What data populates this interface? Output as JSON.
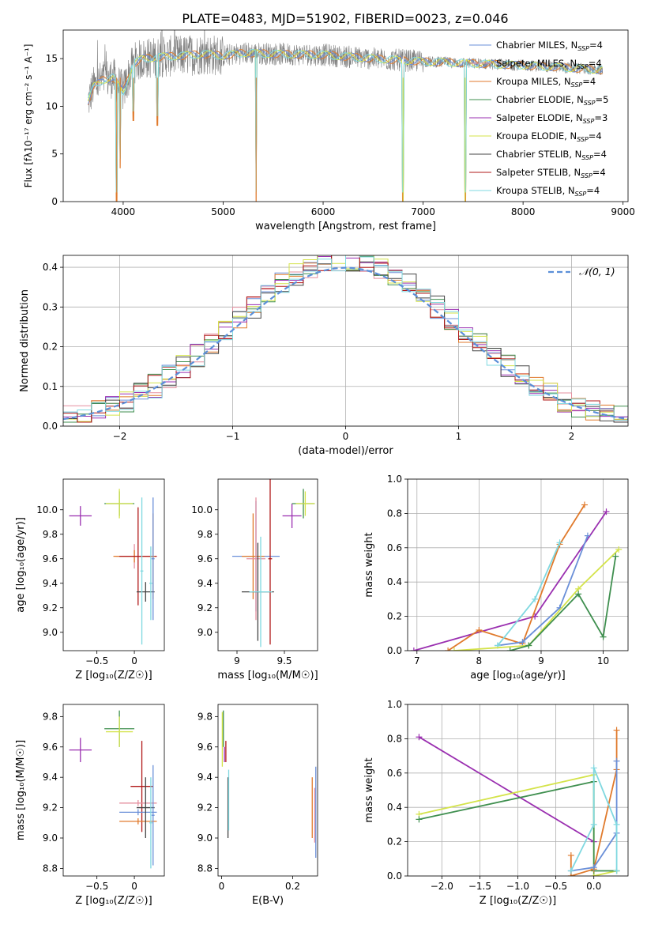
{
  "figure_title": "PLATE=0483, MJD=51902, FIBERID=0023, z=0.046",
  "colors": {
    "Chabrier MILES": "#6a8fd8",
    "Salpeter MILES": "#e58f9f",
    "Kroupa MILES": "#e07a2c",
    "Chabrier ELODIE": "#3f8f4f",
    "Salpeter ELODIE": "#9a2fb0",
    "Kroupa ELODIE": "#d4e34a",
    "Chabrier STELIB": "#444444",
    "Salpeter STELIB": "#b01818",
    "Kroupa STELIB": "#7fd8e0",
    "observed": "#808080",
    "normal": "#5b8fd8"
  },
  "chart_data": [
    {
      "panel": "spectrum",
      "type": "line",
      "xlabel": "wavelength [Angstrom, rest frame]",
      "ylabel": "Flux [fλ10⁻¹⁷ erg cm⁻² s⁻¹ A⁻¹]",
      "xlim": [
        3400,
        9050
      ],
      "ylim": [
        0,
        18
      ],
      "xticks": [
        4000,
        5000,
        6000,
        7000,
        8000,
        9000
      ],
      "yticks": [
        0,
        5,
        10,
        15
      ],
      "grid": false,
      "legend_position": "top-right",
      "legend": [
        {
          "label": "Chabrier MILES, N",
          "sub": "SSP",
          "suffix": "=4",
          "key": "Chabrier MILES"
        },
        {
          "label": "Salpeter MILES, N",
          "sub": "SSP",
          "suffix": "=4",
          "key": "Salpeter MILES"
        },
        {
          "label": "Kroupa MILES, N",
          "sub": "SSP",
          "suffix": "=4",
          "key": "Kroupa MILES"
        },
        {
          "label": "Chabrier ELODIE, N",
          "sub": "SSP",
          "suffix": "=5",
          "key": "Chabrier ELODIE"
        },
        {
          "label": "Salpeter ELODIE, N",
          "sub": "SSP",
          "suffix": "=3",
          "key": "Salpeter ELODIE"
        },
        {
          "label": "Kroupa ELODIE, N",
          "sub": "SSP",
          "suffix": "=4",
          "key": "Kroupa ELODIE"
        },
        {
          "label": "Chabrier STELIB, N",
          "sub": "SSP",
          "suffix": "=4",
          "key": "Chabrier STELIB"
        },
        {
          "label": "Salpeter STELIB, N",
          "sub": "SSP",
          "suffix": "=4",
          "key": "Salpeter STELIB"
        },
        {
          "label": "Kroupa STELIB, N",
          "sub": "SSP",
          "suffix": "=4",
          "key": "Kroupa STELIB"
        }
      ],
      "continuum": {
        "x": [
          3650,
          3700,
          3800,
          3900,
          4000,
          4100,
          4200,
          4400,
          4600,
          4800,
          5000,
          5200,
          5500,
          6000,
          6500,
          7000,
          7500,
          8000,
          8500,
          8800
        ],
        "y": [
          10.5,
          12.0,
          12.8,
          13.0,
          11.5,
          14.5,
          15.0,
          15.2,
          15.3,
          15.5,
          15.3,
          15.6,
          15.5,
          15.4,
          15.0,
          14.7,
          14.5,
          14.3,
          14.0,
          13.8
        ]
      },
      "dips": [
        {
          "x": 3935,
          "y": 0
        },
        {
          "x": 3970,
          "y": 3.5
        },
        {
          "x": 4102,
          "y": 8.5
        },
        {
          "x": 4341,
          "y": 8.0
        },
        {
          "x": 5330,
          "y": 0
        },
        {
          "x": 6800,
          "y": 0
        },
        {
          "x": 7420,
          "y": 0
        }
      ]
    },
    {
      "panel": "residuals",
      "type": "bar",
      "xlabel": "(data-model)/error",
      "ylabel": "Normed distribution",
      "xlim": [
        -2.5,
        2.5
      ],
      "ylim": [
        0,
        0.43
      ],
      "xticks": [
        -2,
        -1,
        0,
        1,
        2
      ],
      "yticks": [
        0.0,
        0.1,
        0.2,
        0.3,
        0.4
      ],
      "grid": true,
      "legend_position": "top-right",
      "legend_label": "𝒩(0, 1)",
      "bins": 40
    },
    {
      "panel": "age_vs_Z",
      "type": "scatter",
      "xlabel": "Z [log₁₀(Z/Z☉)]",
      "ylabel": "age  [log₁₀(age/yr)]",
      "xlim": [
        -0.95,
        0.4
      ],
      "ylim": [
        8.85,
        10.25
      ],
      "xticks": [
        -0.5,
        0.0
      ],
      "yticks": [
        9.0,
        9.2,
        9.4,
        9.6,
        9.8,
        10.0
      ],
      "points": [
        {
          "x": -0.72,
          "y": 9.95,
          "xerr": 0.15,
          "yerr": 0.08,
          "key": "Salpeter ELODIE"
        },
        {
          "x": -0.2,
          "y": 10.05,
          "xerr": 0.2,
          "yerr": 0.1,
          "key": "Chabrier ELODIE"
        },
        {
          "x": -0.2,
          "y": 10.05,
          "xerr": 0.18,
          "yerr": 0.12,
          "key": "Kroupa ELODIE"
        },
        {
          "x": 0.0,
          "y": 9.62,
          "xerr": 0.25,
          "yerr": 0.1,
          "key": "Salpeter MILES"
        },
        {
          "x": 0.0,
          "y": 9.62,
          "xerr": 0.28,
          "yerr": 0.05,
          "key": "Kroupa MILES"
        },
        {
          "x": 0.05,
          "y": 9.62,
          "xerr": 0.25,
          "yerr": 0.4,
          "key": "Salpeter STELIB"
        },
        {
          "x": 0.25,
          "y": 9.62,
          "xerr": 0.02,
          "yerr": 0.35,
          "key": "Kroupa MILES"
        },
        {
          "x": 0.15,
          "y": 9.33,
          "xerr": 0.12,
          "yerr": 0.08,
          "key": "Chabrier STELIB"
        },
        {
          "x": 0.25,
          "y": 9.6,
          "xerr": 0.02,
          "yerr": 0.5,
          "key": "Chabrier MILES"
        },
        {
          "x": 0.1,
          "y": 9.5,
          "xerr": 0.02,
          "yerr": 0.6,
          "key": "Kroupa STELIB"
        },
        {
          "x": 0.22,
          "y": 9.4,
          "xerr": 0.02,
          "yerr": 0.3,
          "key": "Kroupa STELIB"
        }
      ]
    },
    {
      "panel": "age_vs_mass",
      "type": "scatter",
      "xlabel": "mass [log₁₀(M/M☉)]",
      "ylabel": "",
      "xlim": [
        8.8,
        9.85
      ],
      "ylim": [
        8.85,
        10.25
      ],
      "xticks": [
        9.0,
        9.5
      ],
      "yticks": [
        9.0,
        9.2,
        9.4,
        9.6,
        9.8,
        10.0
      ],
      "points": [
        {
          "x": 9.58,
          "y": 9.95,
          "xerr": 0.1,
          "yerr": 0.1,
          "key": "Salpeter ELODIE"
        },
        {
          "x": 9.7,
          "y": 10.05,
          "xerr": 0.12,
          "yerr": 0.12,
          "key": "Chabrier ELODIE"
        },
        {
          "x": 9.72,
          "y": 10.05,
          "xerr": 0.1,
          "yerr": 0.1,
          "key": "Kroupa ELODIE"
        },
        {
          "x": 9.2,
          "y": 9.62,
          "xerr": 0.25,
          "yerr": 0.45,
          "key": "Chabrier MILES"
        },
        {
          "x": 9.17,
          "y": 9.62,
          "xerr": 0.12,
          "yerr": 0.35,
          "key": "Kroupa MILES"
        },
        {
          "x": 9.2,
          "y": 9.6,
          "xerr": 0.1,
          "yerr": 0.5,
          "key": "Salpeter MILES"
        },
        {
          "x": 9.35,
          "y": 9.6,
          "xerr": 0.02,
          "yerr": 0.7,
          "key": "Salpeter STELIB"
        },
        {
          "x": 9.22,
          "y": 9.33,
          "xerr": 0.17,
          "yerr": 0.4,
          "key": "Chabrier STELIB"
        },
        {
          "x": 9.25,
          "y": 9.33,
          "xerr": 0.12,
          "yerr": 0.45,
          "key": "Kroupa STELIB"
        }
      ]
    },
    {
      "panel": "mass_weight_vs_age",
      "type": "line",
      "xlabel": "age  [log₁₀(age/yr)]",
      "ylabel": "mass weight",
      "xlim": [
        6.85,
        10.4
      ],
      "ylim": [
        0,
        1.0
      ],
      "xticks": [
        7,
        8,
        9,
        10
      ],
      "yticks": [
        0.0,
        0.2,
        0.4,
        0.6,
        0.8,
        1.0
      ],
      "series": [
        {
          "key": "Salpeter ELODIE",
          "x": [
            6.95,
            8.9,
            10.05
          ],
          "y": [
            0.0,
            0.2,
            0.81
          ]
        },
        {
          "key": "Kroupa MILES",
          "x": [
            7.5,
            8.0,
            8.7,
            9.3,
            9.7
          ],
          "y": [
            0.0,
            0.12,
            0.04,
            0.62,
            0.85
          ]
        },
        {
          "key": "Chabrier MILES",
          "x": [
            8.3,
            8.7,
            9.3,
            9.75
          ],
          "y": [
            0.03,
            0.05,
            0.25,
            0.67
          ]
        },
        {
          "key": "Kroupa STELIB",
          "x": [
            8.3,
            8.9,
            9.3
          ],
          "y": [
            0.03,
            0.3,
            0.63
          ]
        },
        {
          "key": "Kroupa ELODIE",
          "x": [
            7.6,
            8.8,
            9.6,
            10.25
          ],
          "y": [
            0.0,
            0.03,
            0.36,
            0.59
          ]
        },
        {
          "key": "Chabrier ELODIE",
          "x": [
            8.5,
            8.8,
            9.6,
            10.0,
            10.2
          ],
          "y": [
            0.0,
            0.03,
            0.33,
            0.08,
            0.55
          ]
        }
      ]
    },
    {
      "panel": "mass_vs_Z",
      "type": "scatter",
      "xlabel": "Z [log₁₀(Z/Z☉)]",
      "ylabel": "mass [log₁₀(M/M☉)]",
      "xlim": [
        -0.95,
        0.4
      ],
      "ylim": [
        8.75,
        9.88
      ],
      "xticks": [
        -0.5,
        0.0
      ],
      "yticks": [
        8.8,
        9.0,
        9.2,
        9.4,
        9.6,
        9.8
      ],
      "points": [
        {
          "x": -0.72,
          "y": 9.58,
          "xerr": 0.15,
          "yerr": 0.08,
          "key": "Salpeter ELODIE"
        },
        {
          "x": -0.2,
          "y": 9.72,
          "xerr": 0.2,
          "yerr": 0.12,
          "key": "Chabrier ELODIE"
        },
        {
          "x": -0.2,
          "y": 9.7,
          "xerr": 0.18,
          "yerr": 0.1,
          "key": "Kroupa ELODIE"
        },
        {
          "x": 0.1,
          "y": 9.34,
          "xerr": 0.15,
          "yerr": 0.3,
          "key": "Salpeter STELIB"
        },
        {
          "x": 0.05,
          "y": 9.23,
          "xerr": 0.25,
          "yerr": 0.02,
          "key": "Salpeter MILES"
        },
        {
          "x": 0.05,
          "y": 9.17,
          "xerr": 0.25,
          "yerr": 0.02,
          "key": "Chabrier MILES"
        },
        {
          "x": 0.05,
          "y": 9.11,
          "xerr": 0.25,
          "yerr": 0.02,
          "key": "Kroupa MILES"
        },
        {
          "x": 0.15,
          "y": 9.2,
          "xerr": 0.12,
          "yerr": 0.2,
          "key": "Chabrier STELIB"
        },
        {
          "x": 0.25,
          "y": 9.15,
          "xerr": 0.02,
          "yerr": 0.33,
          "key": "Chabrier MILES"
        },
        {
          "x": 0.22,
          "y": 9.1,
          "xerr": 0.02,
          "yerr": 0.3,
          "key": "Kroupa STELIB"
        }
      ]
    },
    {
      "panel": "mass_vs_ebv",
      "type": "scatter",
      "xlabel": "E(B-V)",
      "ylabel": "",
      "xlim": [
        -0.01,
        0.27
      ],
      "ylim": [
        8.75,
        9.88
      ],
      "xticks": [
        0.0,
        0.2
      ],
      "yticks": [
        8.8,
        9.0,
        9.2,
        9.4,
        9.6,
        9.8
      ],
      "points": [
        {
          "x": 0.002,
          "y": 9.65,
          "xerr": 0,
          "yerr": 0.18,
          "key": "Kroupa ELODIE"
        },
        {
          "x": 0.005,
          "y": 9.72,
          "xerr": 0,
          "yerr": 0.12,
          "key": "Chabrier ELODIE"
        },
        {
          "x": 0.008,
          "y": 9.55,
          "xerr": 0,
          "yerr": 0.05,
          "key": "Salpeter ELODIE"
        },
        {
          "x": 0.012,
          "y": 9.57,
          "xerr": 0,
          "yerr": 0.07,
          "key": "Salpeter STELIB"
        },
        {
          "x": 0.018,
          "y": 9.2,
          "xerr": 0,
          "yerr": 0.2,
          "key": "Chabrier STELIB"
        },
        {
          "x": 0.02,
          "y": 9.25,
          "xerr": 0,
          "yerr": 0.2,
          "key": "Kroupa STELIB"
        },
        {
          "x": 0.255,
          "y": 9.2,
          "xerr": 0,
          "yerr": 0.2,
          "key": "Kroupa MILES"
        },
        {
          "x": 0.262,
          "y": 9.15,
          "xerr": 0,
          "yerr": 0.18,
          "key": "Salpeter MILES"
        },
        {
          "x": 0.265,
          "y": 9.17,
          "xerr": 0,
          "yerr": 0.3,
          "key": "Chabrier MILES"
        }
      ]
    },
    {
      "panel": "mass_weight_vs_Z",
      "type": "line",
      "xlabel": "Z [log₁₀(Z/Z☉)]",
      "ylabel": "mass weight",
      "xlim": [
        -2.45,
        0.45
      ],
      "ylim": [
        0,
        1.0
      ],
      "xticks": [
        -2.0,
        -1.5,
        -1.0,
        -0.5,
        0.0
      ],
      "yticks": [
        0.0,
        0.2,
        0.4,
        0.6,
        0.8,
        1.0
      ],
      "series": [
        {
          "key": "Salpeter ELODIE",
          "x": [
            -2.3,
            0.0
          ],
          "y": [
            0.81,
            0.2
          ]
        },
        {
          "key": "Kroupa ELODIE",
          "x": [
            -2.3,
            0.0,
            0.0,
            0.3
          ],
          "y": [
            0.36,
            0.59,
            0.0,
            0.03
          ]
        },
        {
          "key": "Chabrier ELODIE",
          "x": [
            -2.3,
            0.0,
            0.0,
            0.3
          ],
          "y": [
            0.33,
            0.55,
            0.03,
            0.03
          ]
        },
        {
          "key": "Kroupa MILES",
          "x": [
            -0.3,
            -0.3,
            0.0,
            0.3,
            0.3
          ],
          "y": [
            0.12,
            0.0,
            0.04,
            0.62,
            0.85
          ]
        },
        {
          "key": "Chabrier MILES",
          "x": [
            -0.3,
            0.0,
            0.3,
            0.3
          ],
          "y": [
            0.03,
            0.05,
            0.25,
            0.67
          ]
        },
        {
          "key": "Kroupa STELIB",
          "x": [
            -0.3,
            0.0,
            0.0,
            0.3,
            0.3
          ],
          "y": [
            0.03,
            0.3,
            0.63,
            0.3,
            0.03
          ]
        }
      ]
    }
  ]
}
